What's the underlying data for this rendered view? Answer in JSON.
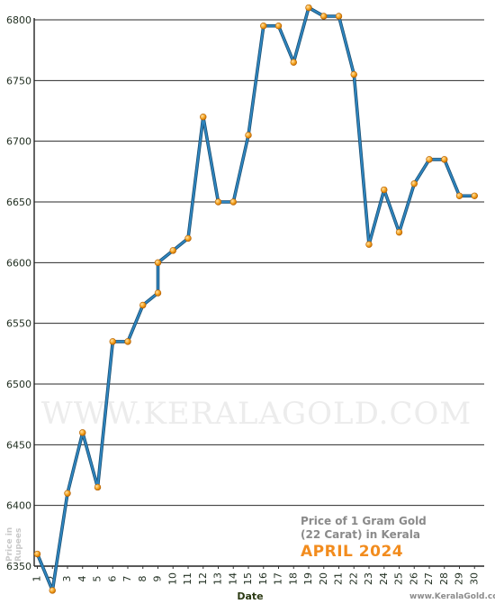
{
  "chart_data": {
    "type": "line",
    "title_line1": "Price of 1 Gram Gold",
    "title_line2": "(22 Carat) in Kerala",
    "month": "APRIL 2024",
    "xlabel": "Date",
    "ylabel_line1": "Price in",
    "ylabel_line2": "Rupees",
    "watermark": "WWW.KERALAGOLD.COM",
    "credit": "www.KeralaGold.com",
    "ylim": [
      6350,
      6800
    ],
    "yticks": [
      6350,
      6400,
      6450,
      6500,
      6550,
      6600,
      6650,
      6700,
      6750,
      6800
    ],
    "xticks": [
      1,
      2,
      3,
      4,
      5,
      6,
      7,
      8,
      9,
      10,
      11,
      12,
      13,
      14,
      15,
      16,
      17,
      18,
      19,
      20,
      21,
      22,
      23,
      24,
      25,
      26,
      27,
      28,
      29,
      30
    ],
    "grid": true,
    "line_color": "#2e86c1",
    "marker_color": "#f5a623",
    "series": [
      {
        "points": [
          [
            1,
            6360
          ],
          [
            2,
            6330
          ],
          [
            3,
            6410
          ],
          [
            4,
            6460
          ],
          [
            5,
            6415
          ],
          [
            6,
            6535
          ],
          [
            7,
            6535
          ],
          [
            8,
            6565
          ],
          [
            9,
            6575
          ],
          [
            9,
            6600
          ],
          [
            10,
            6610
          ],
          [
            11,
            6620
          ],
          [
            12,
            6720
          ],
          [
            13,
            6650
          ],
          [
            14,
            6650
          ],
          [
            15,
            6705
          ],
          [
            16,
            6795
          ],
          [
            17,
            6795
          ],
          [
            18,
            6765
          ],
          [
            19,
            6810
          ],
          [
            20,
            6803
          ],
          [
            21,
            6803
          ],
          [
            22,
            6755
          ],
          [
            23,
            6615
          ],
          [
            24,
            6660
          ],
          [
            25,
            6625
          ],
          [
            26,
            6665
          ],
          [
            27,
            6685
          ],
          [
            28,
            6685
          ],
          [
            29,
            6655
          ],
          [
            30,
            6655
          ]
        ]
      }
    ]
  }
}
